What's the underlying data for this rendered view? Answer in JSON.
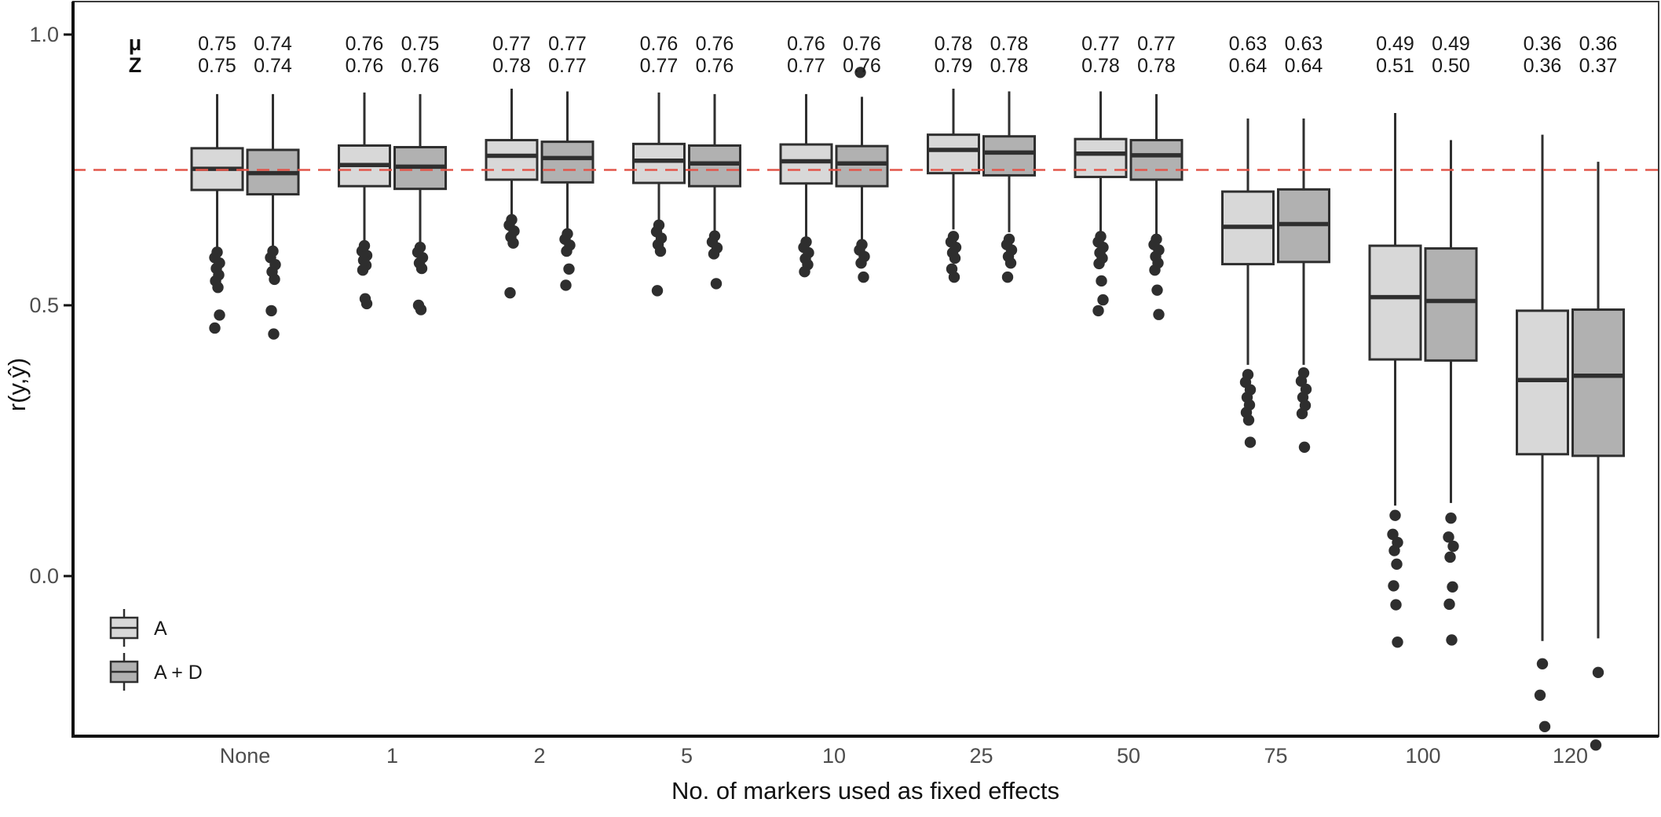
{
  "chart_data": {
    "type": "boxplot",
    "title": "",
    "xlabel": "No. of markers used as fixed effects",
    "ylabel": "r(y,ŷ)",
    "y_ticks": [
      1.0,
      0.5,
      0.0
    ],
    "ylim": [
      -0.35,
      1.05
    ],
    "grid": "off",
    "reference_line": {
      "y": 0.75,
      "style": "dashed",
      "color": "#e2564a"
    },
    "categories": [
      "None",
      "1",
      "2",
      "5",
      "10",
      "25",
      "50",
      "75",
      "100",
      "120"
    ],
    "annotation_header": {
      "mu": "μ",
      "z": "Z"
    },
    "colors": {
      "box_stroke": "#2f2f2f",
      "outlier": "#2e2e2e",
      "axis": "#111111",
      "tick_text": "#4d4d4d"
    },
    "series": [
      {
        "name": "A",
        "fill": "#d8d8d8",
        "boxes": [
          {
            "cat": "None",
            "mu": "0.75",
            "z": "0.75",
            "whishi": 0.89,
            "q3": 0.79,
            "med": 0.752,
            "q1": 0.713,
            "whislo": 0.6,
            "outliers": [
              0.598,
              0.588,
              0.578,
              0.568,
              0.556,
              0.545,
              0.533,
              0.482,
              0.458
            ],
            "outliers_high": []
          },
          {
            "cat": "1",
            "mu": "0.76",
            "z": "0.76",
            "whishi": 0.893,
            "q3": 0.795,
            "med": 0.759,
            "q1": 0.72,
            "whislo": 0.614,
            "outliers": [
              0.61,
              0.6,
              0.592,
              0.583,
              0.574,
              0.565,
              0.512,
              0.503
            ],
            "outliers_high": []
          },
          {
            "cat": "2",
            "mu": "0.77",
            "z": "0.78",
            "whishi": 0.9,
            "q3": 0.805,
            "med": 0.776,
            "q1": 0.732,
            "whislo": 0.63,
            "outliers": [
              0.658,
              0.648,
              0.637,
              0.626,
              0.615,
              0.523
            ],
            "outliers_high": []
          },
          {
            "cat": "5",
            "mu": "0.76",
            "z": "0.77",
            "whishi": 0.893,
            "q3": 0.798,
            "med": 0.767,
            "q1": 0.726,
            "whislo": 0.623,
            "outliers": [
              0.648,
              0.636,
              0.624,
              0.612,
              0.6,
              0.527
            ],
            "outliers_high": []
          },
          {
            "cat": "10",
            "mu": "0.76",
            "z": "0.77",
            "whishi": 0.89,
            "q3": 0.797,
            "med": 0.766,
            "q1": 0.725,
            "whislo": 0.624,
            "outliers": [
              0.617,
              0.607,
              0.597,
              0.586,
              0.575,
              0.562
            ],
            "outliers_high": []
          },
          {
            "cat": "25",
            "mu": "0.78",
            "z": "0.79",
            "whishi": 0.9,
            "q3": 0.815,
            "med": 0.787,
            "q1": 0.744,
            "whislo": 0.64,
            "outliers": [
              0.627,
              0.617,
              0.607,
              0.597,
              0.587,
              0.567,
              0.552
            ],
            "outliers_high": []
          },
          {
            "cat": "50",
            "mu": "0.77",
            "z": "0.78",
            "whishi": 0.895,
            "q3": 0.807,
            "med": 0.78,
            "q1": 0.737,
            "whislo": 0.636,
            "outliers": [
              0.627,
              0.617,
              0.607,
              0.597,
              0.587,
              0.577,
              0.545,
              0.51,
              0.49
            ],
            "outliers_high": []
          },
          {
            "cat": "75",
            "mu": "0.63",
            "z": "0.64",
            "whishi": 0.845,
            "q3": 0.71,
            "med": 0.645,
            "q1": 0.576,
            "whislo": 0.39,
            "outliers": [
              0.372,
              0.358,
              0.344,
              0.33,
              0.316,
              0.302,
              0.288,
              0.247
            ],
            "outliers_high": []
          },
          {
            "cat": "100",
            "mu": "0.49",
            "z": "0.51",
            "whishi": 0.855,
            "q3": 0.61,
            "med": 0.515,
            "q1": 0.4,
            "whislo": 0.13,
            "outliers": [
              0.112,
              0.077,
              0.062,
              0.047,
              0.022,
              -0.018,
              -0.053,
              -0.122
            ],
            "outliers_high": []
          },
          {
            "cat": "120",
            "mu": "0.36",
            "z": "0.36",
            "whishi": 0.815,
            "q3": 0.49,
            "med": 0.362,
            "q1": 0.225,
            "whislo": -0.12,
            "outliers": [
              -0.162,
              -0.22,
              -0.278
            ],
            "outliers_high": []
          }
        ]
      },
      {
        "name": "A + D",
        "fill": "#b1b1b1",
        "boxes": [
          {
            "cat": "None",
            "mu": "0.74",
            "z": "0.74",
            "whishi": 0.89,
            "q3": 0.787,
            "med": 0.744,
            "q1": 0.705,
            "whislo": 0.603,
            "outliers": [
              0.6,
              0.588,
              0.575,
              0.562,
              0.548,
              0.49,
              0.447
            ],
            "outliers_high": []
          },
          {
            "cat": "1",
            "mu": "0.75",
            "z": "0.76",
            "whishi": 0.89,
            "q3": 0.792,
            "med": 0.756,
            "q1": 0.715,
            "whislo": 0.61,
            "outliers": [
              0.607,
              0.598,
              0.588,
              0.578,
              0.568,
              0.5,
              0.492
            ],
            "outliers_high": []
          },
          {
            "cat": "2",
            "mu": "0.77",
            "z": "0.77",
            "whishi": 0.895,
            "q3": 0.802,
            "med": 0.772,
            "q1": 0.727,
            "whislo": 0.625,
            "outliers": [
              0.632,
              0.622,
              0.611,
              0.6,
              0.567,
              0.537
            ],
            "outliers_high": []
          },
          {
            "cat": "5",
            "mu": "0.76",
            "z": "0.76",
            "whishi": 0.89,
            "q3": 0.795,
            "med": 0.762,
            "q1": 0.72,
            "whislo": 0.618,
            "outliers": [
              0.628,
              0.617,
              0.606,
              0.595,
              0.54
            ],
            "outliers_high": []
          },
          {
            "cat": "10",
            "mu": "0.76",
            "z": "0.76",
            "whishi": 0.885,
            "q3": 0.794,
            "med": 0.762,
            "q1": 0.72,
            "whislo": 0.62,
            "outliers": [
              0.612,
              0.602,
              0.59,
              0.578,
              0.552
            ],
            "outliers_high": [
              0.93
            ]
          },
          {
            "cat": "25",
            "mu": "0.78",
            "z": "0.78",
            "whishi": 0.895,
            "q3": 0.812,
            "med": 0.782,
            "q1": 0.74,
            "whislo": 0.635,
            "outliers": [
              0.622,
              0.612,
              0.602,
              0.59,
              0.578,
              0.552
            ],
            "outliers_high": []
          },
          {
            "cat": "50",
            "mu": "0.77",
            "z": "0.78",
            "whishi": 0.89,
            "q3": 0.805,
            "med": 0.777,
            "q1": 0.732,
            "whislo": 0.63,
            "outliers": [
              0.622,
              0.612,
              0.602,
              0.59,
              0.578,
              0.565,
              0.528,
              0.483
            ],
            "outliers_high": []
          },
          {
            "cat": "75",
            "mu": "0.63",
            "z": "0.64",
            "whishi": 0.845,
            "q3": 0.714,
            "med": 0.65,
            "q1": 0.58,
            "whislo": 0.39,
            "outliers": [
              0.375,
              0.36,
              0.345,
              0.33,
              0.315,
              0.3,
              0.238
            ],
            "outliers_high": []
          },
          {
            "cat": "100",
            "mu": "0.49",
            "z": "0.50",
            "whishi": 0.805,
            "q3": 0.605,
            "med": 0.508,
            "q1": 0.398,
            "whislo": 0.135,
            "outliers": [
              0.107,
              0.072,
              0.055,
              0.035,
              -0.02,
              -0.052,
              -0.118
            ],
            "outliers_high": []
          },
          {
            "cat": "120",
            "mu": "0.36",
            "z": "0.37",
            "whishi": 0.765,
            "q3": 0.492,
            "med": 0.37,
            "q1": 0.222,
            "whislo": -0.115,
            "outliers": [
              -0.178,
              -0.312
            ],
            "outliers_high": []
          }
        ]
      }
    ]
  },
  "legend": {
    "items": [
      {
        "label": "A"
      },
      {
        "label": "A + D"
      }
    ]
  }
}
